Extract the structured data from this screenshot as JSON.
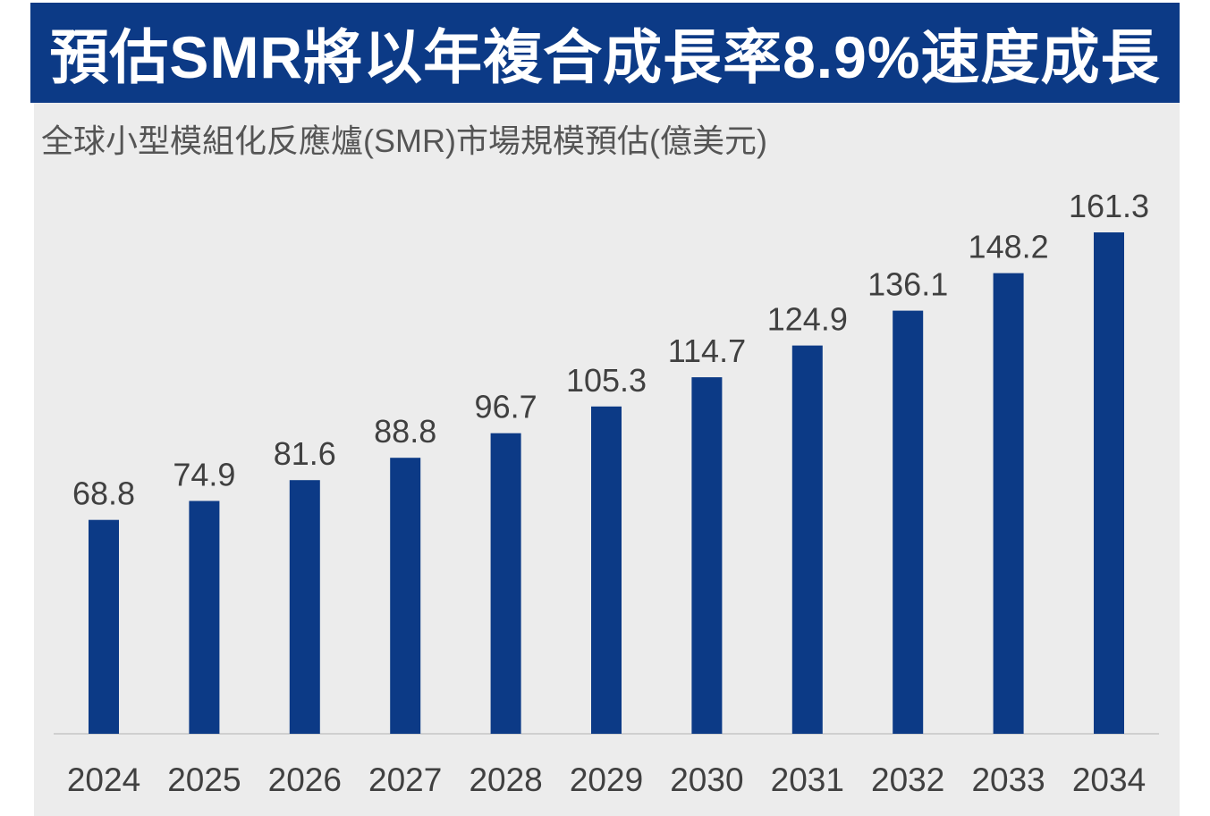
{
  "header": {
    "title": "預估SMR將以年複合成長率8.9%速度成長"
  },
  "colors": {
    "banner": "#0c3a86",
    "bar": "#0c3a86",
    "panel_bg": "#ececec"
  },
  "chart_data": {
    "type": "bar",
    "title": "預估SMR將以年複合成長率8.9%速度成長",
    "subtitle": "全球小型模組化反應爐(SMR)市場規模預估(億美元)",
    "xlabel": "",
    "ylabel": "",
    "categories": [
      "2024",
      "2025",
      "2026",
      "2027",
      "2028",
      "2029",
      "2030",
      "2031",
      "2032",
      "2033",
      "2034"
    ],
    "values": [
      68.8,
      74.9,
      81.6,
      88.8,
      96.7,
      105.3,
      114.7,
      124.9,
      136.1,
      148.2,
      161.3
    ],
    "value_labels": [
      "68.8",
      "74.9",
      "81.6",
      "88.8",
      "96.7",
      "105.3",
      "114.7",
      "124.9",
      "136.1",
      "148.2",
      "161.3"
    ],
    "ylim": [
      0,
      161.3
    ],
    "grid": false,
    "legend": "none"
  }
}
